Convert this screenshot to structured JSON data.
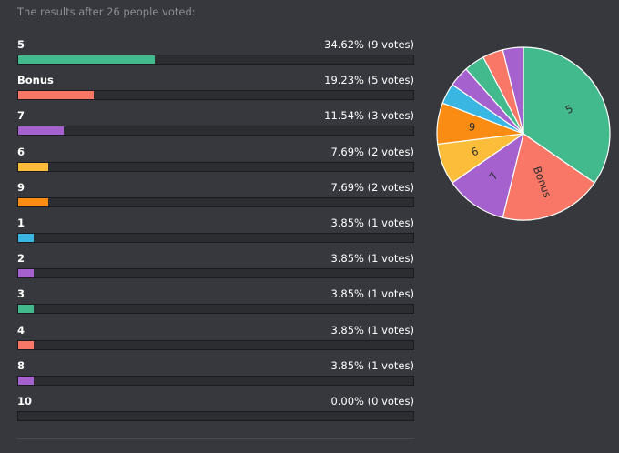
{
  "header": {
    "text": "The results after 26 people voted:"
  },
  "chart_data": {
    "type": "bar+pie",
    "total_votes": 26,
    "options": [
      {
        "label": "5",
        "percent": 34.62,
        "votes": 9,
        "stat": "34.62% (9 votes)",
        "color": "#43b98e"
      },
      {
        "label": "Bonus",
        "percent": 19.23,
        "votes": 5,
        "stat": "19.23% (5 votes)",
        "color": "#f97766"
      },
      {
        "label": "7",
        "percent": 11.54,
        "votes": 3,
        "stat": "11.54% (3 votes)",
        "color": "#a562cf"
      },
      {
        "label": "6",
        "percent": 7.69,
        "votes": 2,
        "stat": "7.69% (2 votes)",
        "color": "#fbbd3a"
      },
      {
        "label": "9",
        "percent": 7.69,
        "votes": 2,
        "stat": "7.69% (2 votes)",
        "color": "#fb8c13"
      },
      {
        "label": "1",
        "percent": 3.85,
        "votes": 1,
        "stat": "3.85% (1 votes)",
        "color": "#3ab6e3"
      },
      {
        "label": "2",
        "percent": 3.85,
        "votes": 1,
        "stat": "3.85% (1 votes)",
        "color": "#a562cf"
      },
      {
        "label": "3",
        "percent": 3.85,
        "votes": 1,
        "stat": "3.85% (1 votes)",
        "color": "#43b98e"
      },
      {
        "label": "4",
        "percent": 3.85,
        "votes": 1,
        "stat": "3.85% (1 votes)",
        "color": "#f97766"
      },
      {
        "label": "8",
        "percent": 3.85,
        "votes": 1,
        "stat": "3.85% (1 votes)",
        "color": "#a562cf"
      },
      {
        "label": "10",
        "percent": 0.0,
        "votes": 0,
        "stat": "0.00% (0 votes)",
        "color": "#3ab6e3"
      }
    ],
    "pie_labeled_slices": [
      "5",
      "Bonus",
      "7",
      "6",
      "9"
    ]
  }
}
